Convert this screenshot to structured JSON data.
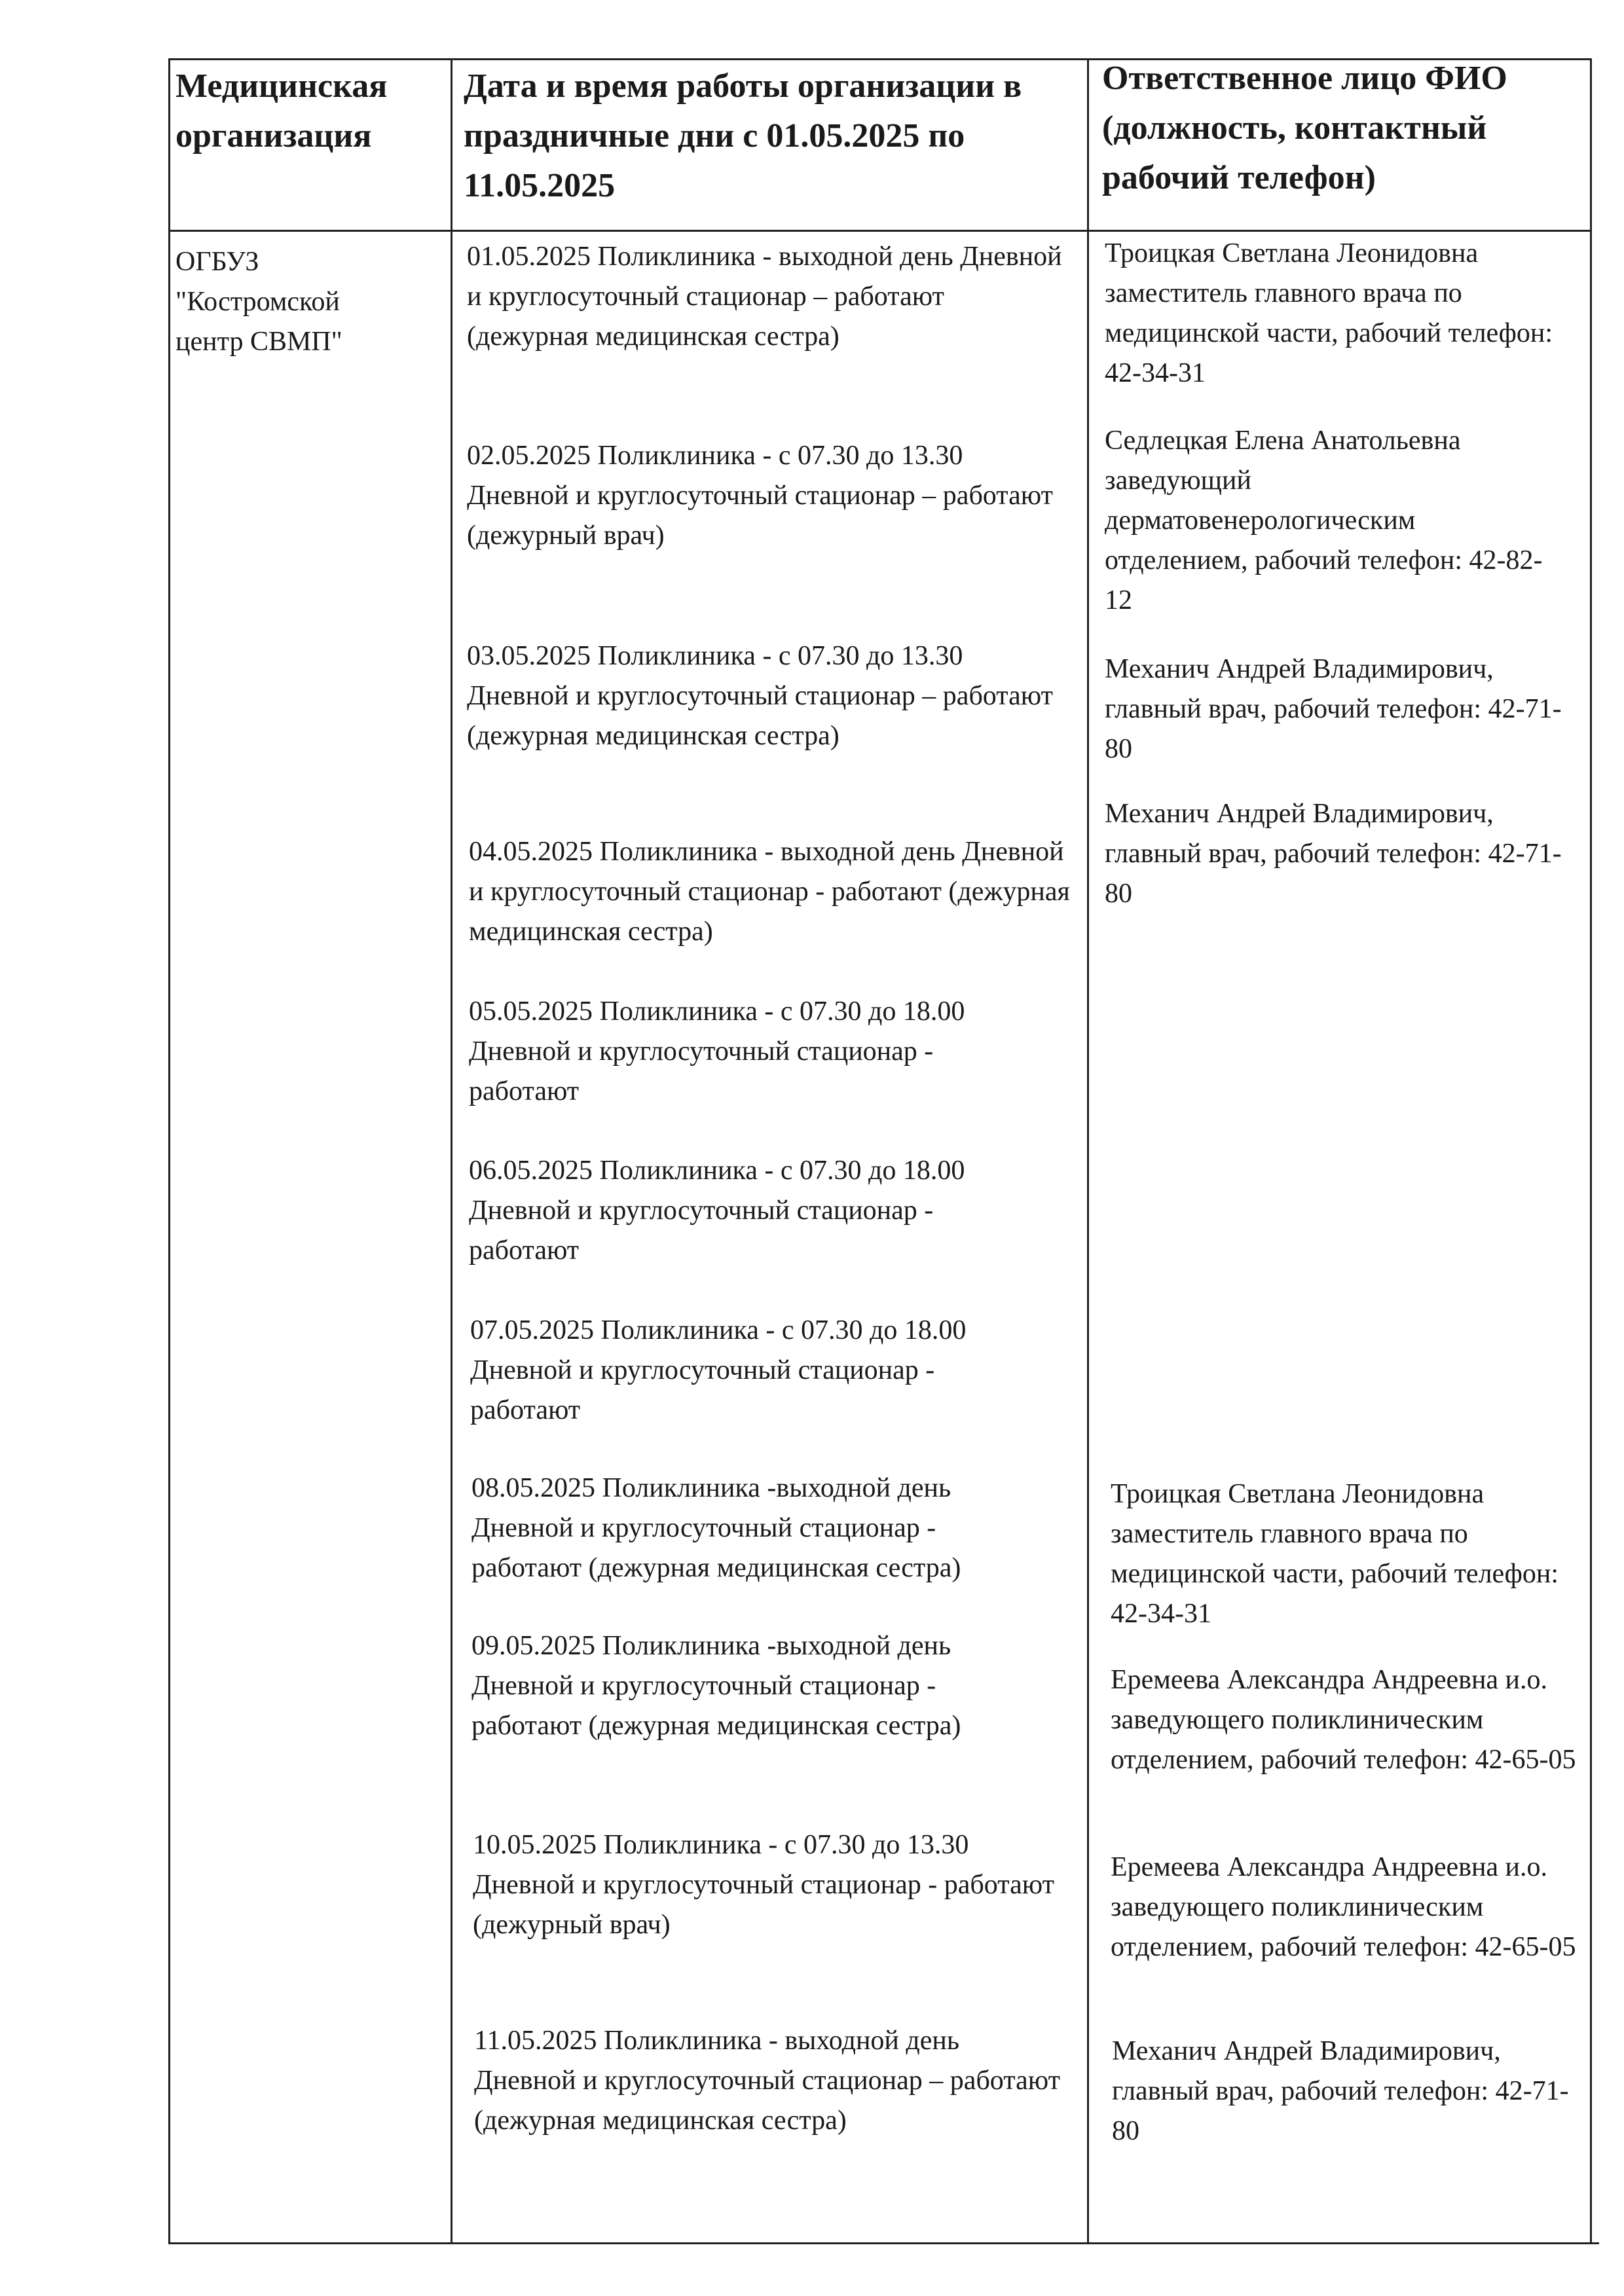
{
  "table": {
    "headers": [
      "Медицинская организация",
      "Дата и время работы организации в праздничные дни с 01.05.2025 по 11.05.2025",
      "Ответственное лицо ФИО (должность, контактный рабочий телефон)"
    ],
    "organization": "ОГБУЗ \"Костромской центр СВМП\"",
    "schedule": [
      "01.05.2025 Поликлиника -  выходной день Дневной и круглосуточный стационар – работают (дежурная медицинская сестра)",
      "02.05.2025 Поликлиника - с 07.30 до 13.30 Дневной и круглосуточный стационар – работают (дежурный врач)",
      "03.05.2025 Поликлиника - с 07.30 до 13.30 Дневной и круглосуточный стационар – работают (дежурная медицинская сестра)",
      "04.05.2025 Поликлиника - выходной день Дневной и круглосуточный стационар - работают (дежурная медицинская сестра)",
      "05.05.2025 Поликлиника - с 07.30 до 18.00 Дневной и круглосуточный стационар - работают",
      "06.05.2025 Поликлиника - с 07.30 до 18.00 Дневной и круглосуточный стационар - работают",
      "07.05.2025 Поликлиника - с 07.30 до 18.00 Дневной и круглосуточный стационар - работают",
      "08.05.2025 Поликлиника -выходной день Дневной и круглосуточный стационар - работают (дежурная медицинская сестра)",
      "09.05.2025 Поликлиника -выходной день Дневной и круглосуточный стационар - работают (дежурная медицинская сестра)",
      "10.05.2025 Поликлиника - с 07.30 до 13.30 Дневной и круглосуточный стационар - работают (дежурный врач)",
      "11.05.2025 Поликлиника - выходной день Дневной и круглосуточный стационар – работают (дежурная медицинская сестра)"
    ],
    "responsible": [
      "Троицкая Светлана Леонидовна заместитель главного врача по медицинской части, рабочий телефон: 42-34-31",
      "Седлецкая Елена Анатольевна заведующий дерматовенерологическим отделением, рабочий телефон: 42-82-12",
      "Механич Андрей Владимирович, главный врач, рабочий телефон: 42-71-80",
      "Механич Андрей Владимирович, главный врач, рабочий телефон: 42-71-80",
      "Троицкая Светлана Леонидовна заместитель главного врача по медицинской части, рабочий телефон: 42-34-31",
      "Еремеева Александра Андреевна и.о. заведующего поликлиническим отделением, рабочий телефон: 42-65-05",
      "Еремеева Александра Андреевна и.о. заведующего поликлиническим отделением, рабочий телефон: 42-65-05",
      "Механич Андрей Владимирович, главный врач, рабочий телефон: 42-71-80"
    ]
  }
}
